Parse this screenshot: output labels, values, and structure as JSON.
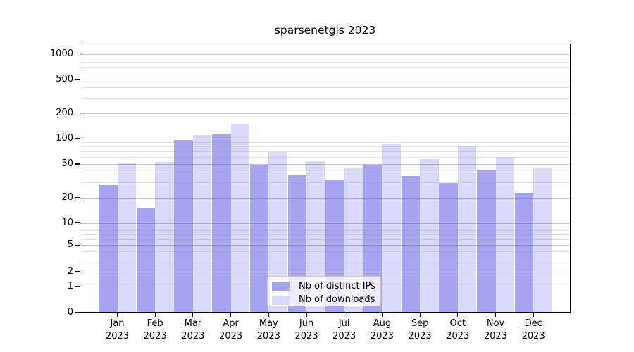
{
  "title": "sparsenetgls 2023",
  "colors": {
    "background": "#ffffff",
    "axis": "#000000",
    "text": "#000000",
    "grid_major": "#c3c3c3",
    "grid_minor": "#e4e4e4",
    "bar_distinct_ips": "#a5a5f2",
    "bar_downloads": "#d9d9fa"
  },
  "chart_data": {
    "type": "bar",
    "title": "sparsenetgls 2023",
    "categories": [
      "Jan",
      "Feb",
      "Mar",
      "Apr",
      "May",
      "Jun",
      "Jul",
      "Aug",
      "Sep",
      "Oct",
      "Nov",
      "Dec"
    ],
    "category_year_line": "2023",
    "series": [
      {
        "name": "Nb of distinct IPs",
        "color": "#a5a5f2",
        "values": [
          28,
          15,
          96,
          113,
          49,
          37,
          32,
          49,
          36,
          30,
          42,
          23
        ]
      },
      {
        "name": "Nb of downloads",
        "color": "#d9d9fa",
        "values": [
          52,
          53,
          110,
          150,
          70,
          54,
          45,
          87,
          57,
          81,
          61,
          45
        ]
      }
    ],
    "xlabel": "",
    "ylabel": "",
    "yticks": [
      0,
      1,
      2,
      5,
      10,
      20,
      50,
      100,
      200,
      500,
      1000
    ],
    "yscale": "log above 1, compressed linear segment 0-1 (symlog-like)",
    "ylim": [
      0,
      1300
    ],
    "grid": "horizontal major + minor gridlines drawn over bars",
    "legend_position": "lower center"
  }
}
